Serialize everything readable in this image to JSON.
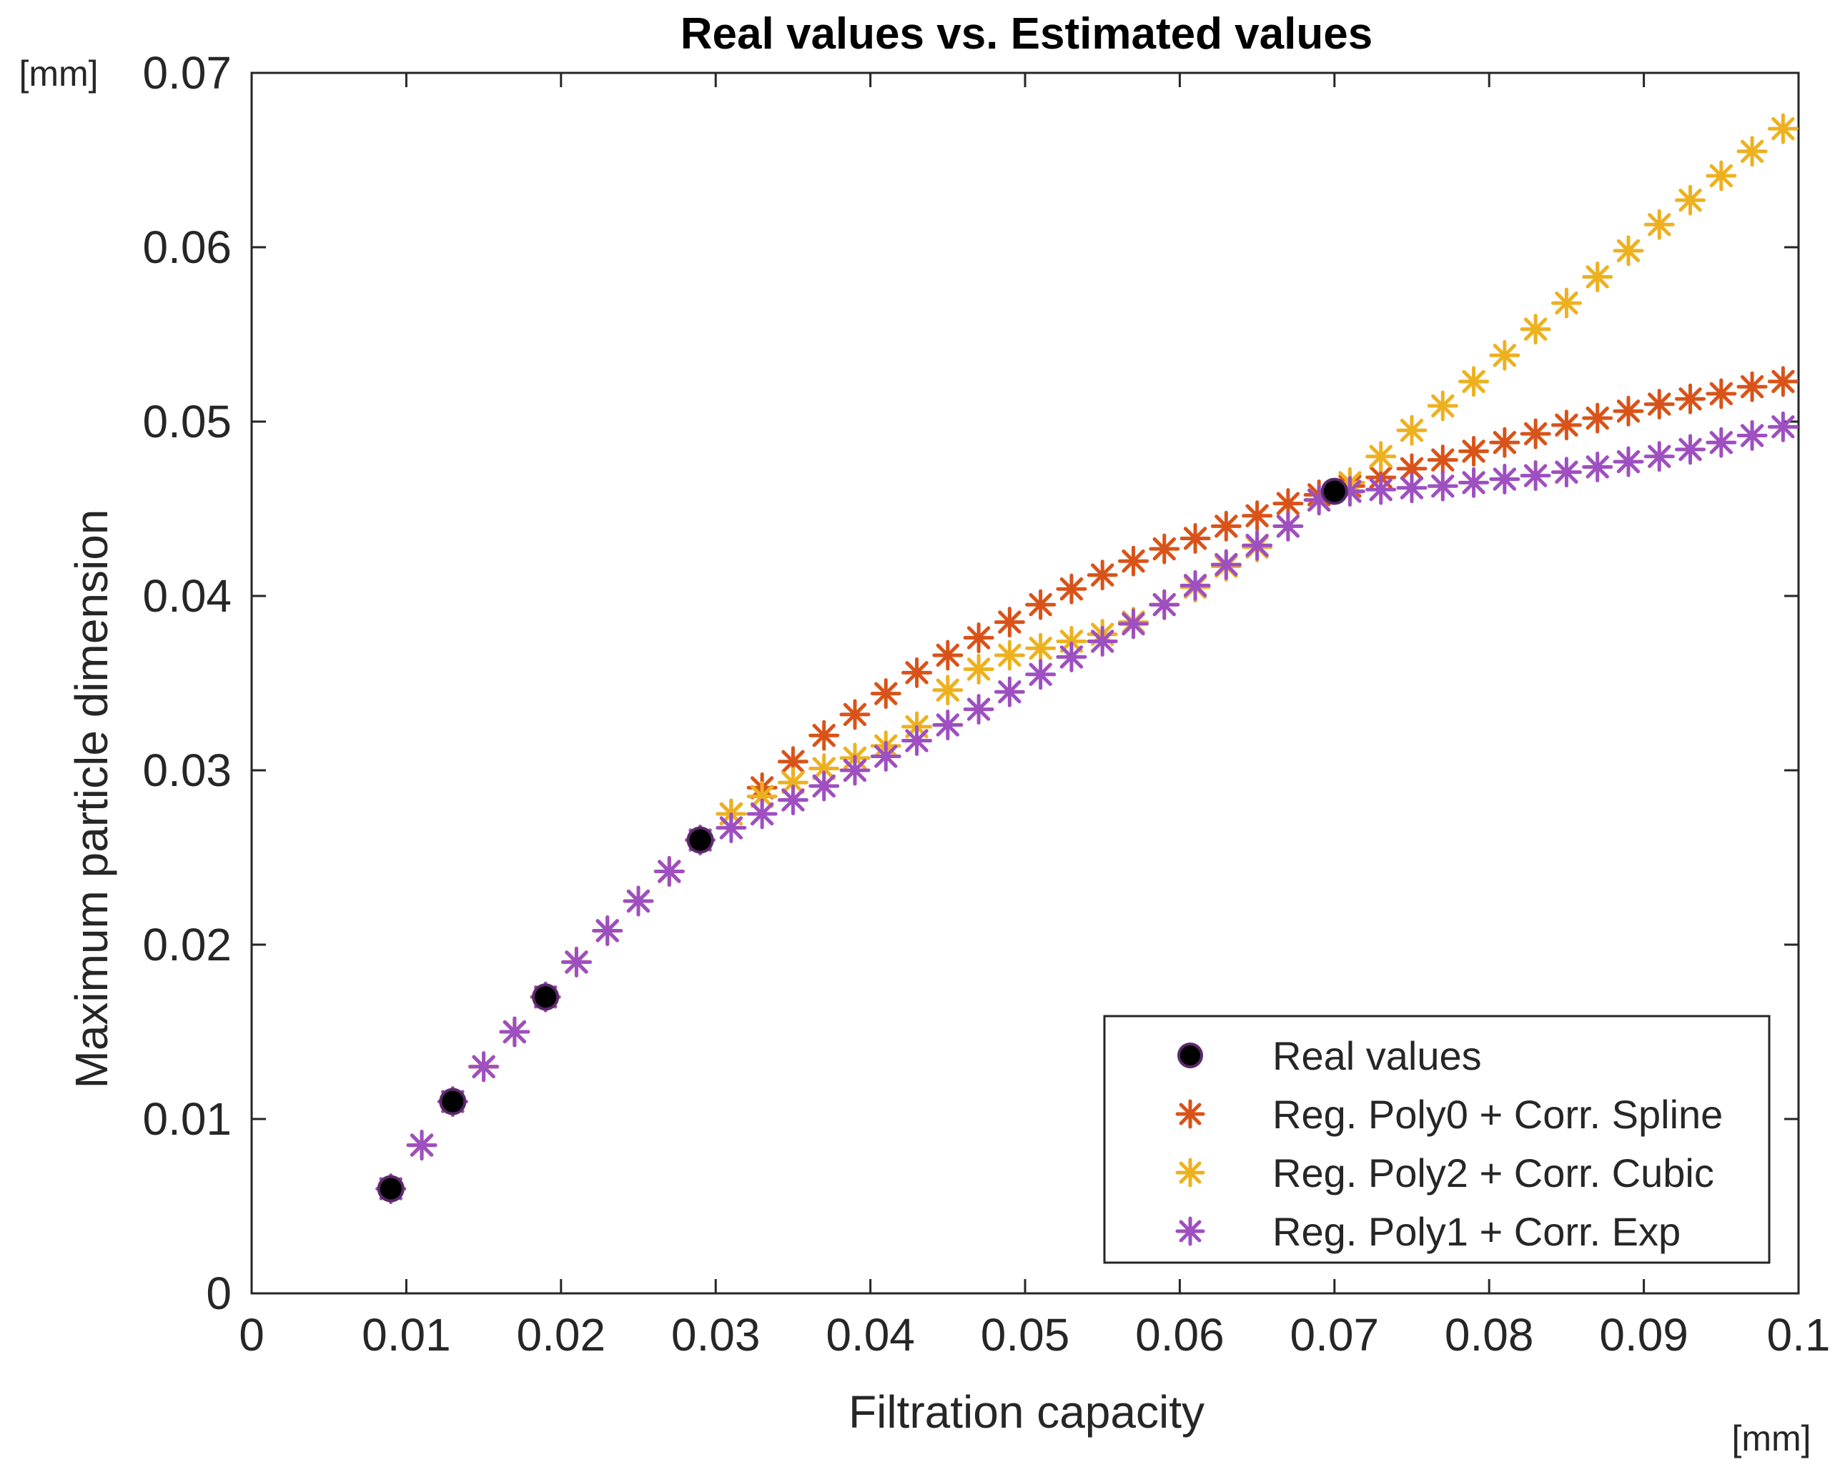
{
  "chart_data": {
    "type": "scatter",
    "title": "Real values  vs. Estimated values",
    "xlabel": "Filtration capacity",
    "ylabel": "Maximum particle dimension",
    "x_unit": "[mm]",
    "y_unit": "[mm]",
    "xlim": [
      0,
      0.1
    ],
    "ylim": [
      0,
      0.07
    ],
    "xticks": [
      0,
      0.01,
      0.02,
      0.03,
      0.04,
      0.05,
      0.06,
      0.07,
      0.08,
      0.09,
      0.1
    ],
    "xtick_labels": [
      "0",
      "0.01",
      "0.02",
      "0.03",
      "0.04",
      "0.05",
      "0.06",
      "0.07",
      "0.08",
      "0.09",
      "0.1"
    ],
    "yticks": [
      0,
      0.01,
      0.02,
      0.03,
      0.04,
      0.05,
      0.06,
      0.07
    ],
    "ytick_labels": [
      "0",
      "0.01",
      "0.02",
      "0.03",
      "0.04",
      "0.05",
      "0.06",
      "0.07"
    ],
    "grid": false,
    "legend_position": "bottom-right",
    "series": [
      {
        "name": "Real values",
        "marker": "circle",
        "color": "#000000",
        "x": [
          0.009,
          0.013,
          0.019,
          0.029,
          0.07
        ],
        "y": [
          0.006,
          0.011,
          0.017,
          0.026,
          0.046
        ]
      },
      {
        "name": "Reg. Poly0 + Corr. Spline",
        "marker": "asterisk",
        "color": "#D95319",
        "x": [
          0.009,
          0.011,
          0.013,
          0.015,
          0.017,
          0.019,
          0.021,
          0.023,
          0.025,
          0.027,
          0.029,
          0.031,
          0.033,
          0.035,
          0.037,
          0.039,
          0.041,
          0.043,
          0.045,
          0.047,
          0.049,
          0.051,
          0.053,
          0.055,
          0.057,
          0.059,
          0.061,
          0.063,
          0.065,
          0.067,
          0.069,
          0.071,
          0.073,
          0.075,
          0.077,
          0.079,
          0.081,
          0.083,
          0.085,
          0.087,
          0.089,
          0.091,
          0.093,
          0.095,
          0.097,
          0.099
        ],
        "y": [
          0.006,
          0.0085,
          0.011,
          0.013,
          0.015,
          0.017,
          0.019,
          0.0208,
          0.0225,
          0.0242,
          0.026,
          0.0275,
          0.029,
          0.0305,
          0.032,
          0.0332,
          0.0344,
          0.0356,
          0.0366,
          0.0376,
          0.0385,
          0.0395,
          0.0404,
          0.0412,
          0.042,
          0.0427,
          0.0433,
          0.044,
          0.0446,
          0.0453,
          0.0458,
          0.0463,
          0.0468,
          0.0473,
          0.0478,
          0.0483,
          0.0488,
          0.0493,
          0.0498,
          0.0502,
          0.0506,
          0.051,
          0.0513,
          0.0516,
          0.052,
          0.0523
        ]
      },
      {
        "name": "Reg. Poly2 + Corr. Cubic",
        "marker": "asterisk",
        "color": "#EDB120",
        "x": [
          0.009,
          0.011,
          0.013,
          0.015,
          0.017,
          0.019,
          0.021,
          0.023,
          0.025,
          0.027,
          0.029,
          0.031,
          0.033,
          0.035,
          0.037,
          0.039,
          0.041,
          0.043,
          0.045,
          0.047,
          0.049,
          0.051,
          0.053,
          0.055,
          0.057,
          0.059,
          0.061,
          0.063,
          0.065,
          0.067,
          0.069,
          0.071,
          0.073,
          0.075,
          0.077,
          0.079,
          0.081,
          0.083,
          0.085,
          0.087,
          0.089,
          0.091,
          0.093,
          0.095,
          0.097,
          0.099
        ],
        "y": [
          0.006,
          0.0085,
          0.011,
          0.013,
          0.015,
          0.017,
          0.019,
          0.0208,
          0.0225,
          0.0242,
          0.026,
          0.0275,
          0.0285,
          0.0293,
          0.0301,
          0.0307,
          0.0314,
          0.0325,
          0.0346,
          0.0358,
          0.0366,
          0.037,
          0.0374,
          0.0378,
          0.0385,
          0.0395,
          0.0405,
          0.0417,
          0.0428,
          0.044,
          0.0455,
          0.0465,
          0.048,
          0.0495,
          0.0509,
          0.0523,
          0.0538,
          0.0553,
          0.0568,
          0.0583,
          0.0598,
          0.0613,
          0.0627,
          0.0641,
          0.0655,
          0.0668
        ]
      },
      {
        "name": "Reg. Poly1 + Corr. Exp",
        "marker": "asterisk",
        "color": "#9E4FC0",
        "x": [
          0.009,
          0.011,
          0.013,
          0.015,
          0.017,
          0.019,
          0.021,
          0.023,
          0.025,
          0.027,
          0.029,
          0.031,
          0.033,
          0.035,
          0.037,
          0.039,
          0.041,
          0.043,
          0.045,
          0.047,
          0.049,
          0.051,
          0.053,
          0.055,
          0.057,
          0.059,
          0.061,
          0.063,
          0.065,
          0.067,
          0.069,
          0.071,
          0.073,
          0.075,
          0.077,
          0.079,
          0.081,
          0.083,
          0.085,
          0.087,
          0.089,
          0.091,
          0.093,
          0.095,
          0.097,
          0.099
        ],
        "y": [
          0.006,
          0.0085,
          0.011,
          0.013,
          0.015,
          0.017,
          0.019,
          0.0208,
          0.0225,
          0.0242,
          0.026,
          0.0267,
          0.0275,
          0.0283,
          0.0291,
          0.03,
          0.0308,
          0.0317,
          0.0326,
          0.0335,
          0.0345,
          0.0355,
          0.0365,
          0.0374,
          0.0384,
          0.0395,
          0.0406,
          0.0418,
          0.0429,
          0.044,
          0.0455,
          0.046,
          0.0461,
          0.0462,
          0.0463,
          0.0465,
          0.0467,
          0.0469,
          0.0471,
          0.0474,
          0.0477,
          0.048,
          0.0484,
          0.0488,
          0.0492,
          0.0497
        ]
      }
    ]
  }
}
